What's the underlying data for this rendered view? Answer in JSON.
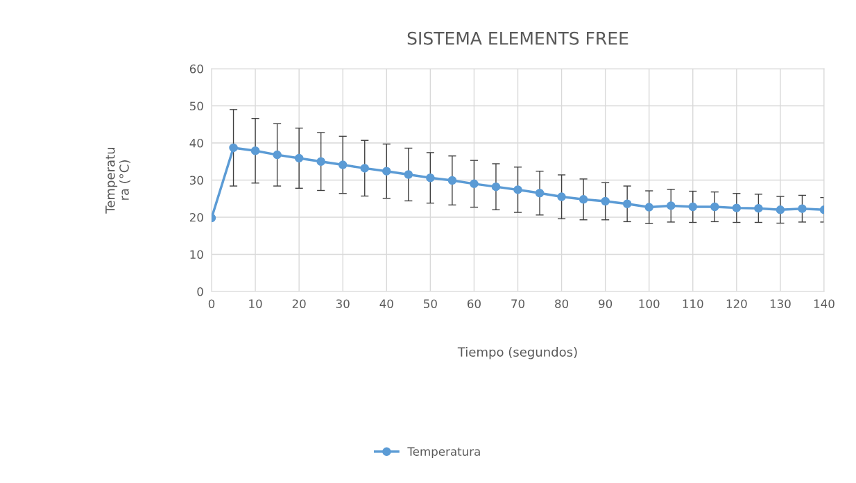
{
  "chart_data": {
    "type": "line",
    "title": "SISTEMA ELEMENTS FREE",
    "xlabel": "Tiempo (segundos)",
    "ylabel": "Temperatu\nra (°C)",
    "x": [
      0,
      5,
      10,
      15,
      20,
      25,
      30,
      35,
      40,
      45,
      50,
      55,
      60,
      65,
      70,
      75,
      80,
      85,
      90,
      95,
      100,
      105,
      110,
      115,
      120,
      125,
      130,
      135,
      140
    ],
    "series": [
      {
        "name": "Temperatura",
        "color": "#5b9bd5",
        "values": [
          19.8,
          38.7,
          37.9,
          36.8,
          35.9,
          35.0,
          34.1,
          33.2,
          32.4,
          31.5,
          30.6,
          29.9,
          29.0,
          28.2,
          27.4,
          26.5,
          25.5,
          24.8,
          24.3,
          23.6,
          22.7,
          23.1,
          22.8,
          22.8,
          22.5,
          22.4,
          22.0,
          22.3,
          22.0
        ],
        "errors": [
          null,
          10.3,
          8.7,
          8.4,
          8.1,
          7.8,
          7.7,
          7.5,
          7.3,
          7.1,
          6.8,
          6.6,
          6.3,
          6.2,
          6.1,
          5.9,
          5.9,
          5.5,
          5.0,
          4.8,
          4.4,
          4.4,
          4.2,
          4.0,
          3.9,
          3.8,
          3.6,
          3.6,
          3.3
        ]
      }
    ],
    "xlim": [
      0,
      140
    ],
    "xticks": [
      0,
      10,
      20,
      30,
      40,
      50,
      60,
      70,
      80,
      90,
      100,
      110,
      120,
      130,
      140
    ],
    "ylim": [
      0,
      60
    ],
    "yticks": [
      0,
      10,
      20,
      30,
      40,
      50,
      60
    ],
    "grid": true,
    "legend": "bottom",
    "marker": "circle",
    "line_style": "solid"
  }
}
